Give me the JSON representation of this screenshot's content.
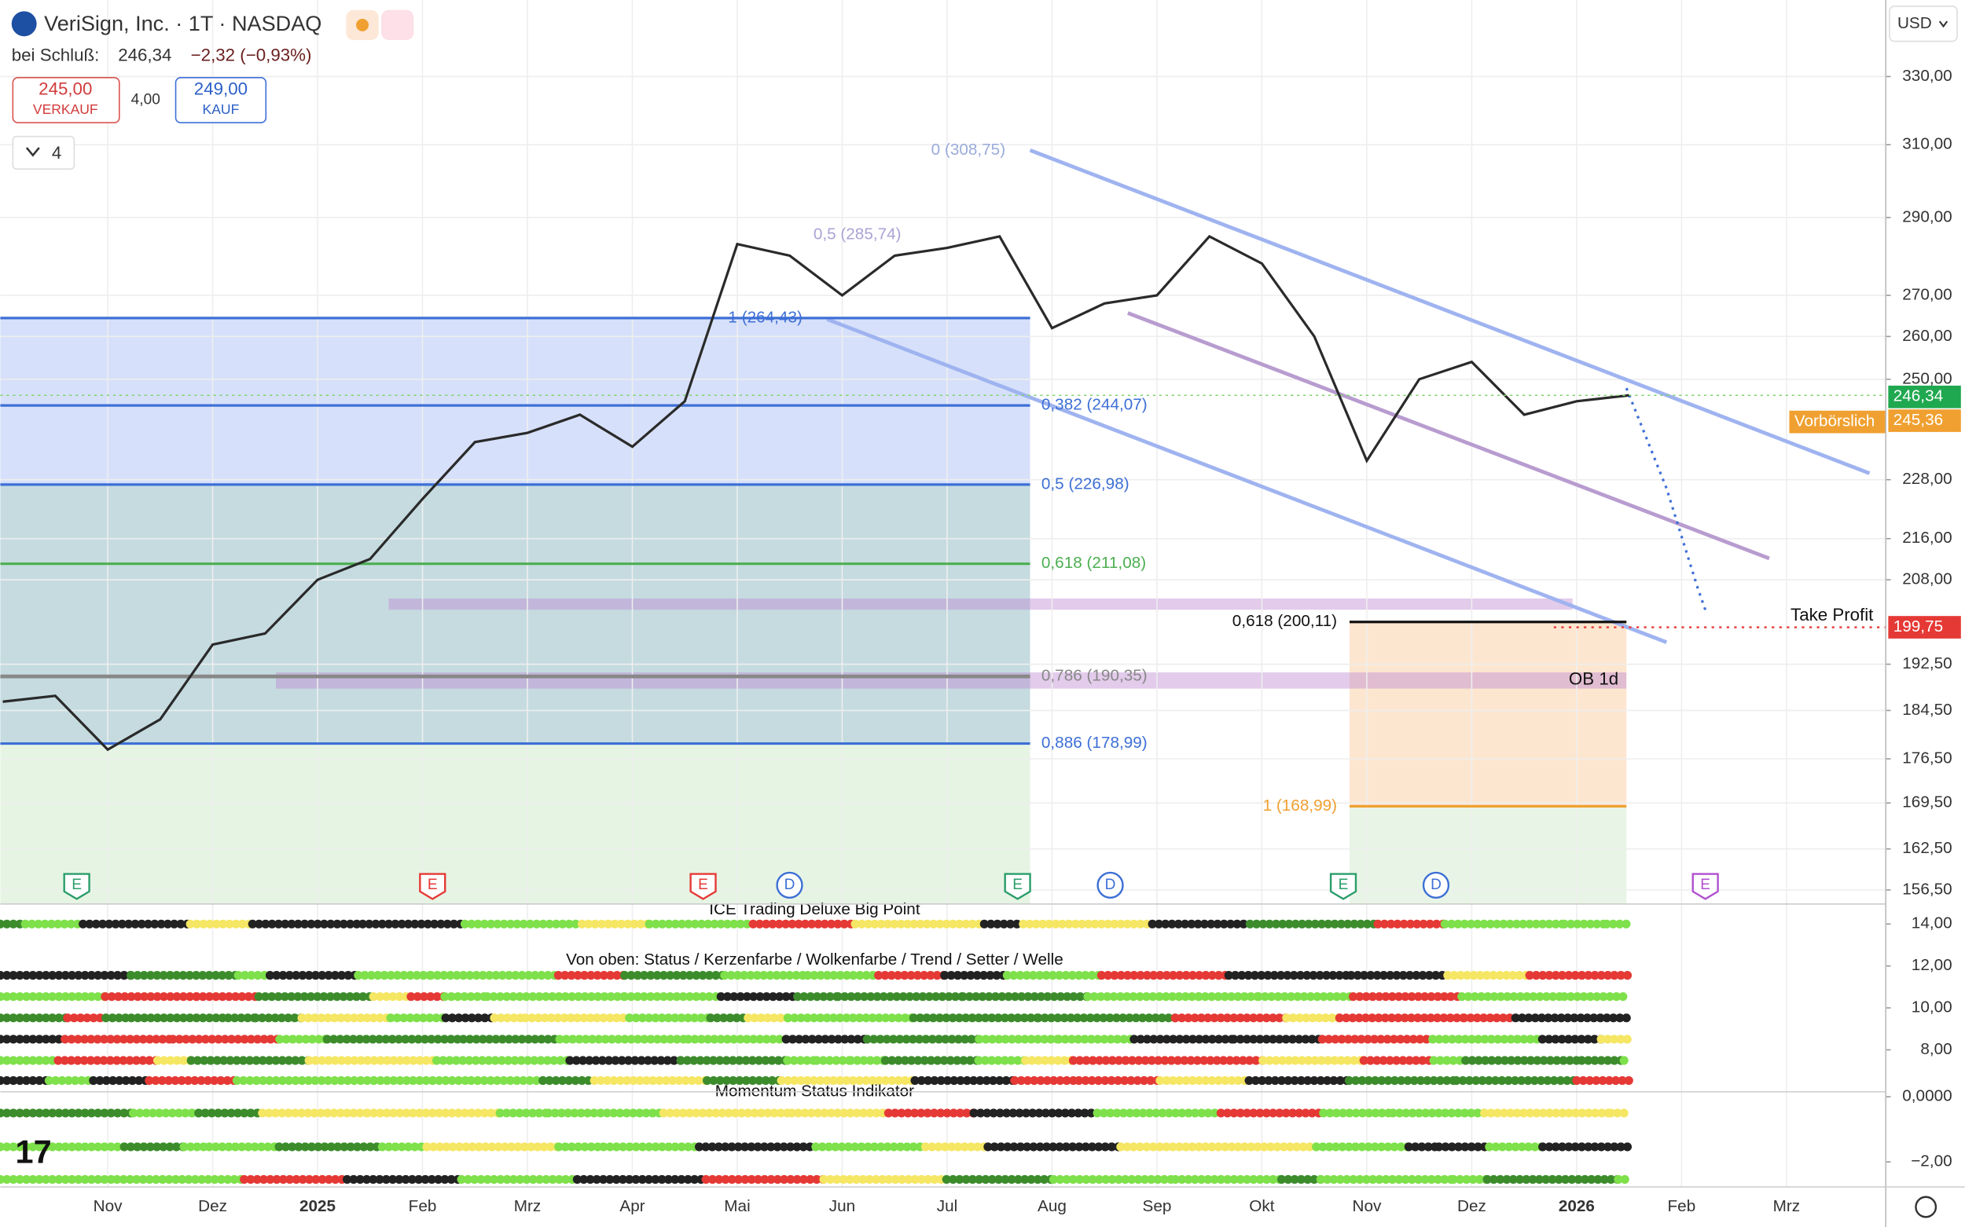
{
  "header": {
    "close_label": "bei Schluß:",
    "close": "246,34",
    "change": "−2,32 (−0,93%)",
    "sell_price": "245,00",
    "sell_label": "VERKAUF",
    "spread": "4,00",
    "buy_price": "249,00",
    "buy_label": "KAUF",
    "indicator_count": "4",
    "currency": "USD"
  },
  "chart_data": {
    "type": "line",
    "title": "VeriSign, Inc. · 1T · NASDAQ",
    "log": true,
    "grid": true,
    "categories": [
      null,
      null,
      "Nov",
      null,
      "Dez",
      null,
      "2025",
      null,
      "Feb",
      null,
      "Mrz",
      null,
      "Apr",
      null,
      "Mai",
      null,
      "Jun",
      null,
      "Jul",
      null,
      "Aug",
      null,
      "Sep",
      null,
      "Okt",
      null,
      "Nov",
      null,
      "Dez",
      null,
      "2026",
      null,
      "Feb",
      null,
      "Mrz",
      null
    ],
    "series": [
      {
        "name": "VeriSign",
        "color": "#2a2a2a",
        "values": [
          186,
          187,
          178,
          183,
          196,
          198,
          208,
          212,
          224,
          236,
          238,
          242,
          235,
          245,
          283,
          280,
          270,
          280,
          282,
          285,
          262,
          268,
          270,
          285,
          278,
          260,
          232,
          250,
          254,
          242,
          245,
          246.34,
          null,
          null,
          null,
          null
        ]
      }
    ],
    "ylim": [
      154.5,
      354
    ],
    "yticks": [
      {
        "value": 330,
        "label": "330,00"
      },
      {
        "value": 310,
        "label": "310,00"
      },
      {
        "value": 290,
        "label": "290,00"
      },
      {
        "value": 270,
        "label": "270,00"
      },
      {
        "value": 260,
        "label": "260,00"
      },
      {
        "value": 250,
        "label": "250,00"
      },
      {
        "value": 228,
        "label": "228,00"
      },
      {
        "value": 216,
        "label": "216,00"
      },
      {
        "value": 208,
        "label": "208,00"
      },
      {
        "value": 192.5,
        "label": "192,50"
      },
      {
        "value": 184.5,
        "label": "184,50"
      },
      {
        "value": 176.5,
        "label": "176,50"
      },
      {
        "value": 169.5,
        "label": "169,50"
      },
      {
        "value": 162.5,
        "label": "162,50"
      },
      {
        "value": 156.5,
        "label": "156,50"
      }
    ],
    "fib_levels": [
      {
        "label": "0 (308,75)",
        "value": 308.75,
        "color": "#9aabdc"
      },
      {
        "label": "0,5 (285,74)",
        "value": 285.74,
        "color": "#aaa3d4"
      },
      {
        "label": "1 (264,43)",
        "value": 264.43,
        "color": "#3d6fd6"
      },
      {
        "label": "0,382 (244,07)",
        "value": 244.07,
        "color": "#3d6fd6"
      },
      {
        "label": "0,5 (226,98)",
        "value": 226.98,
        "color": "#3d6fd6"
      },
      {
        "label": "0,618 (211,08)",
        "value": 211.08,
        "color": "#4caf50"
      },
      {
        "label": "0,786 (190,35)",
        "value": 190.35,
        "color": "#888888"
      },
      {
        "label": "0,886 (178,99)",
        "value": 178.99,
        "color": "#3d6fd6"
      },
      {
        "label": "0,618 (200,11)",
        "value": 200.11,
        "color": "#111111"
      },
      {
        "label": "1 (168,99)",
        "value": 168.99,
        "color": "#f0a030"
      }
    ],
    "badges": [
      "246,34",
      "245,36",
      "Vorbörslich",
      "199,75",
      "Take Profit",
      "OB 1d"
    ],
    "events": [
      "E",
      "E",
      "E",
      "D",
      "E",
      "D",
      "E",
      "D",
      "E"
    ]
  },
  "indicators": [
    {
      "titles": [
        "ICE Trading Deluxe Big Point",
        "Von oben: Status / Kerzenfarbe / Wolkenfarbe / Trend / Setter / Welle"
      ],
      "ylim": [
        6.0,
        14.955
      ],
      "yticks": [
        {
          "value": 14,
          "label": "14,00"
        },
        {
          "value": 12,
          "label": "12,00"
        },
        {
          "value": 10,
          "label": "10,00"
        },
        {
          "value": 8,
          "label": "8,00"
        }
      ]
    },
    {
      "titles": [
        "Momentum Status Indikator"
      ],
      "ylim": [
        -2.77,
        0.154
      ],
      "yticks": [
        {
          "value": 0,
          "label": "0,0000"
        },
        {
          "value": -2,
          "label": "−2,00"
        }
      ]
    }
  ]
}
